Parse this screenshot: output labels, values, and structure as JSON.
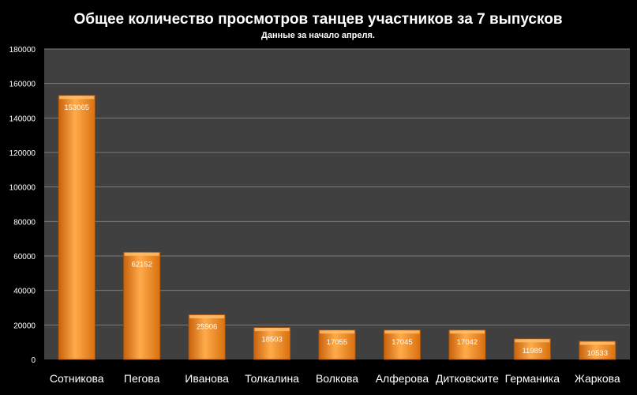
{
  "chart_data": {
    "type": "bar",
    "title": "Общее количество просмотров танцев участников за 7 выпусков",
    "subtitle": "Данные за начало апреля.",
    "categories": [
      "Сотникова",
      "Пегова",
      "Иванова",
      "Толкалина",
      "Волкова",
      "Алферова",
      "Дитковските",
      "Германика",
      "Жаркова"
    ],
    "values": [
      153065,
      62152,
      25906,
      18503,
      17055,
      17045,
      17042,
      11989,
      10533
    ],
    "ylim": [
      0,
      180000
    ],
    "yticks": [
      0,
      20000,
      40000,
      60000,
      80000,
      100000,
      120000,
      140000,
      160000,
      180000
    ],
    "grid": true,
    "legend": "none",
    "data_labels": true,
    "xlabel": "",
    "ylabel": ""
  },
  "colors": {
    "page_background": "#000000",
    "plot_background": "#404040",
    "gridline": "#7a7a7a",
    "bar_fill": "#f08a1c",
    "bar_highlight": "#ffc070",
    "text": "#ffffff"
  }
}
